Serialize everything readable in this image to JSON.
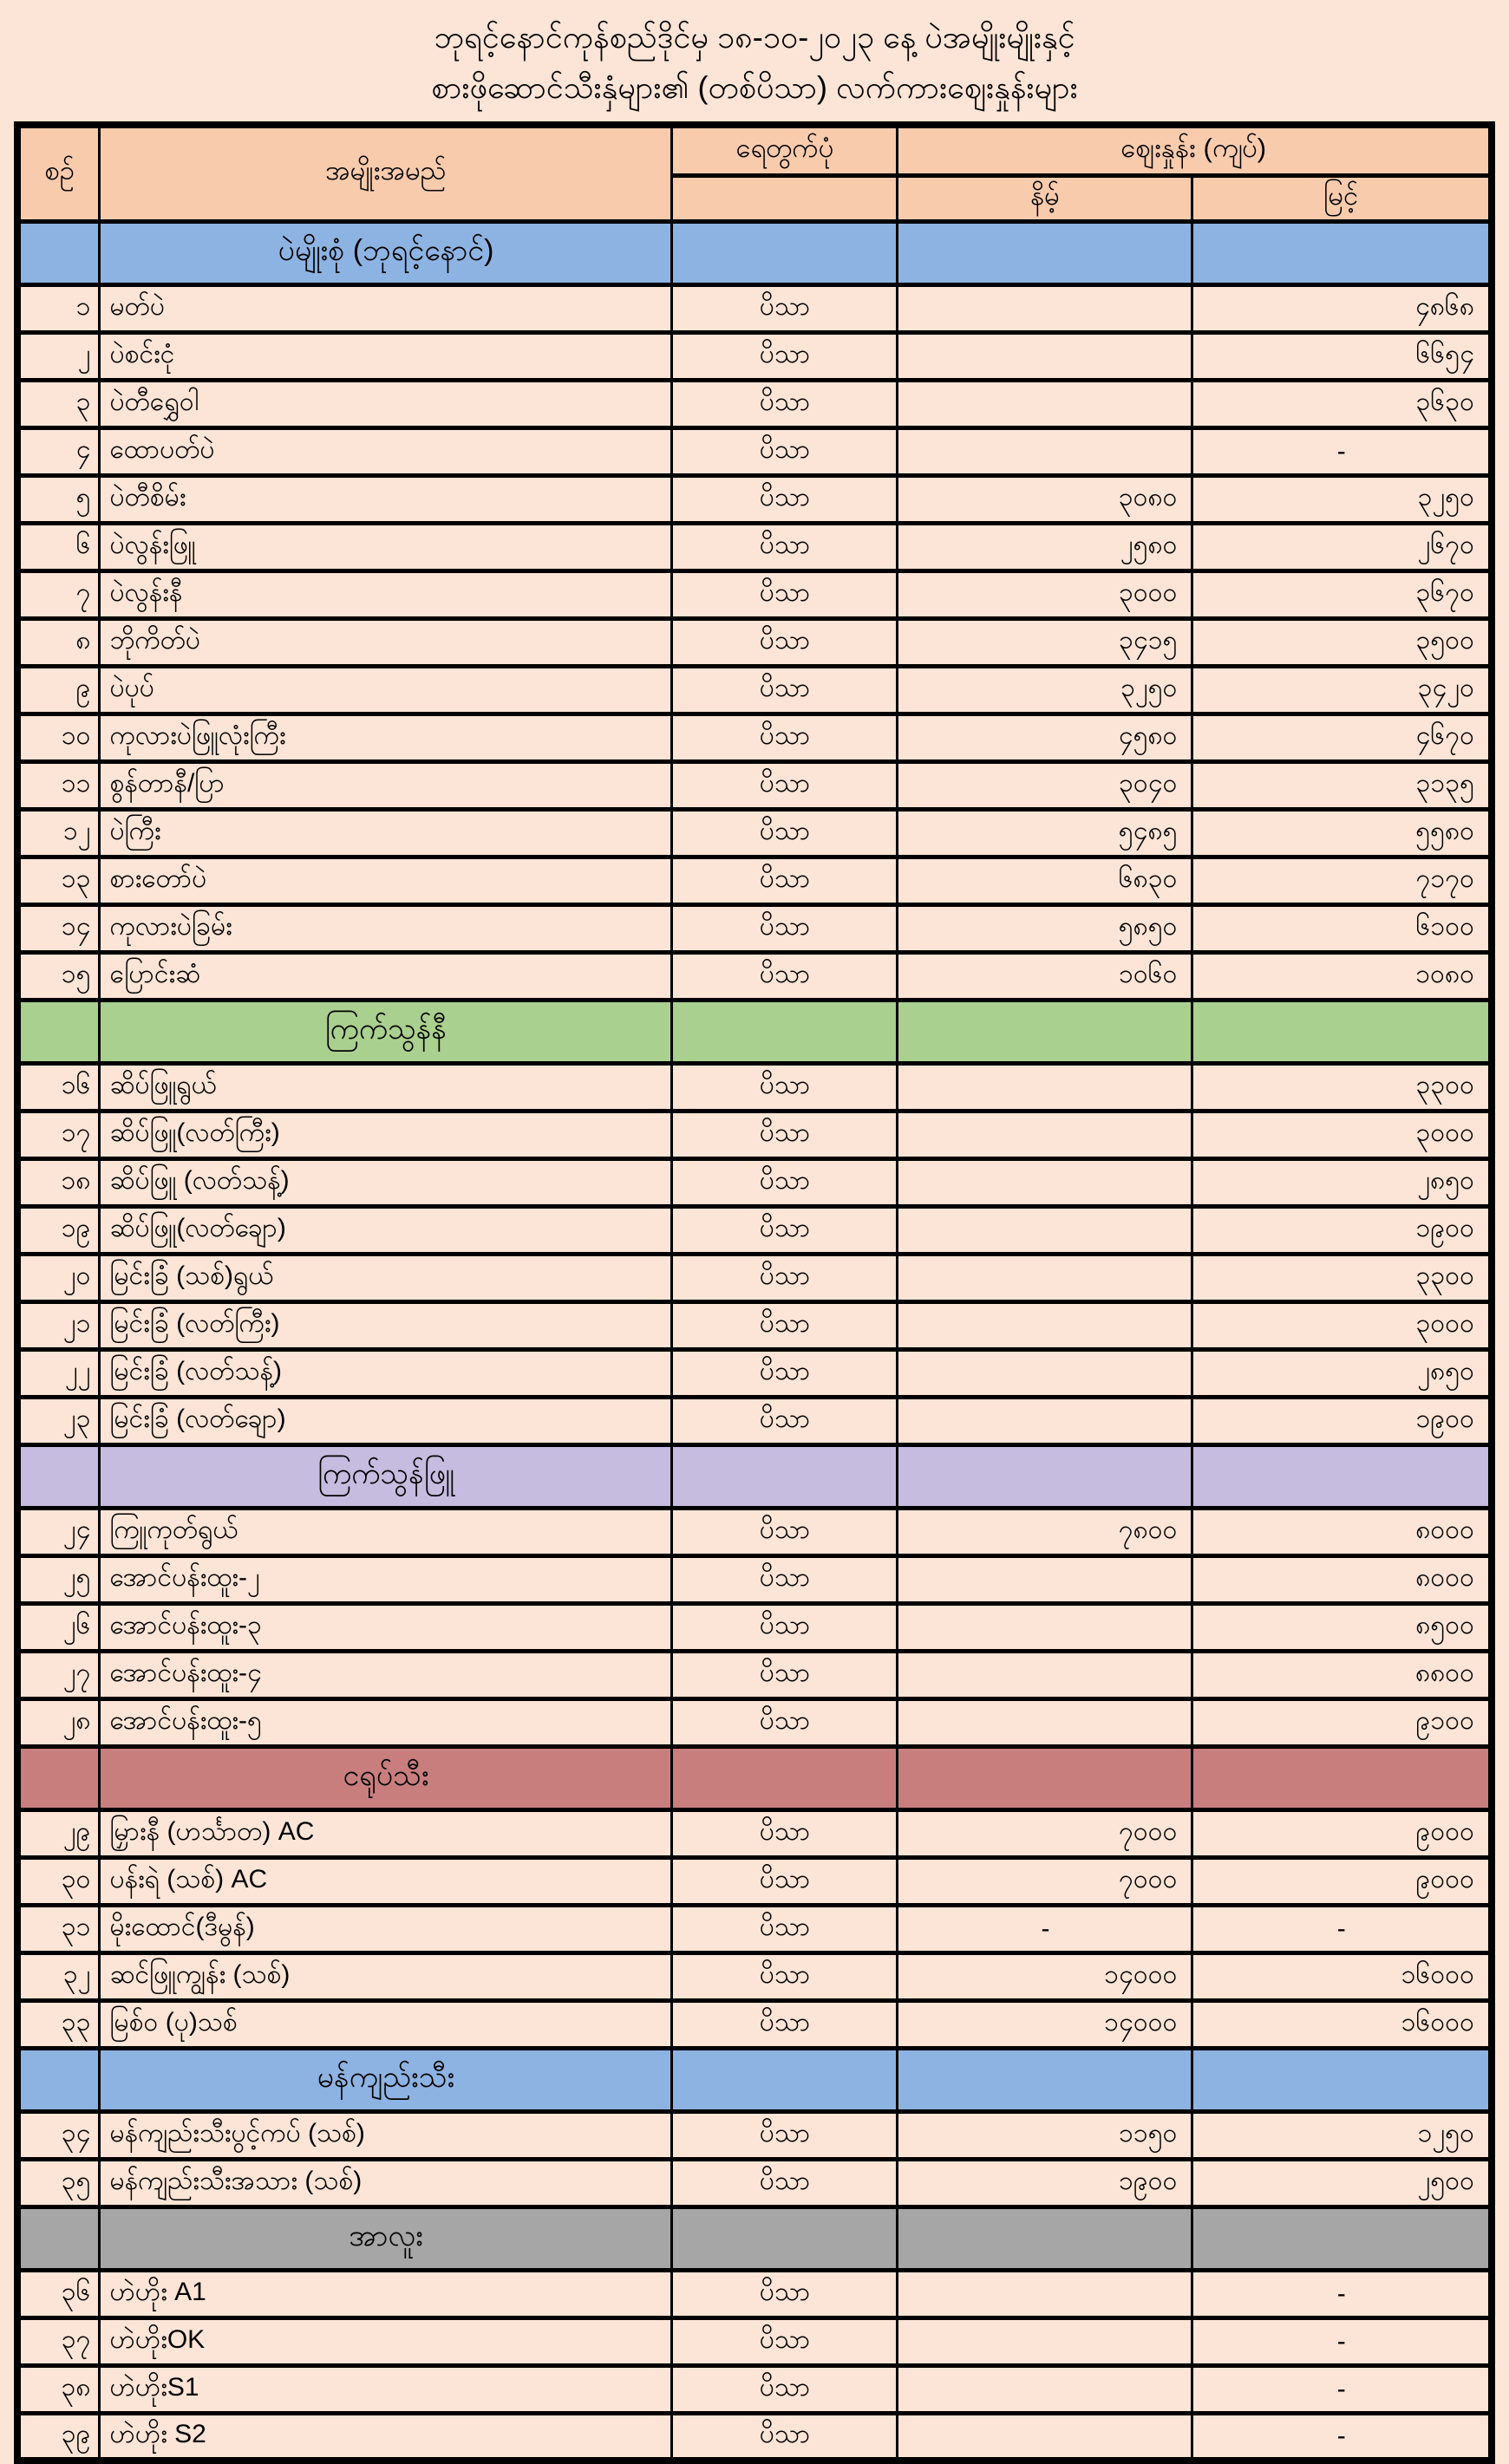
{
  "title": {
    "line1": "ဘုရင့်နောင်ကုန်စည်ဒိုင်မှ ၁၈-၁၀-၂၀၂၃ နေ့ ပဲအမျိုးမျိုးနှင့်",
    "line2": "စားဖိုဆောင်သီးနှံများ၏ (တစ်ပိသာ) လက်ကားဈေးနှုန်းများ"
  },
  "colors": {
    "page_bg": "#fce4d6",
    "row_bg": "#fce4d6",
    "header_bg": "#f8cbad",
    "border": "#000000"
  },
  "table": {
    "headers": {
      "no": "စဉ်",
      "name": "အမျိုးအမည်",
      "unit": "ရေတွက်ပုံ",
      "price_group": "ဈေးနှုန်း (ကျပ်)",
      "low": "နိမ့်",
      "high": "မြင့်"
    },
    "sections": [
      {
        "label": "ပဲမျိုးစုံ (ဘုရင့်နောင်)",
        "color": "#8db3e2",
        "rows": [
          {
            "no": "၁",
            "name": "မတ်ပဲ",
            "unit": "ပိသာ",
            "low": "",
            "high": "၄၈၆၈"
          },
          {
            "no": "၂",
            "name": "ပဲစင်းငုံ",
            "unit": "ပိသာ",
            "low": "",
            "high": "၆၆၅၄"
          },
          {
            "no": "၃",
            "name": "ပဲတီရွှေဝါ",
            "unit": "ပိသာ",
            "low": "",
            "high": "၃၆၃၀"
          },
          {
            "no": "၄",
            "name": "ထောပတ်ပဲ",
            "unit": "ပိသာ",
            "low": "",
            "high": "-"
          },
          {
            "no": "၅",
            "name": "ပဲတီစိမ်း",
            "unit": "ပိသာ",
            "low": "၃၀၈၀",
            "high": "၃၂၅၀"
          },
          {
            "no": "၆",
            "name": "ပဲလွန်းဖြူ",
            "unit": "ပိသာ",
            "low": "၂၅၈၀",
            "high": "၂၆၇၀"
          },
          {
            "no": "၇",
            "name": "ပဲလွန်းနီ",
            "unit": "ပိသာ",
            "low": "၃၀၀၀",
            "high": "၃၆၇၀"
          },
          {
            "no": "၈",
            "name": "ဘိုကိတ်ပဲ",
            "unit": "ပိသာ",
            "low": "၃၄၁၅",
            "high": "၃၅၀၀"
          },
          {
            "no": "၉",
            "name": "ပဲပုပ်",
            "unit": "ပိသာ",
            "low": "၃၂၅၀",
            "high": "၃၄၂၀"
          },
          {
            "no": "၁၀",
            "name": "ကုလားပဲဖြူလုံးကြီး",
            "unit": "ပိသာ",
            "low": "၄၅၈၀",
            "high": "၄၆၇၀"
          },
          {
            "no": "၁၁",
            "name": "စွန်တာနီ/ပြာ",
            "unit": "ပိသာ",
            "low": "၃၀၄၀",
            "high": "၃၁၃၅"
          },
          {
            "no": "၁၂",
            "name": "ပဲကြီး",
            "unit": "ပိသာ",
            "low": "၅၄၈၅",
            "high": "၅၅၈၀"
          },
          {
            "no": "၁၃",
            "name": "စားတော်ပဲ",
            "unit": "ပိသာ",
            "low": "၆၈၃၀",
            "high": "၇၁၇၀"
          },
          {
            "no": "၁၄",
            "name": "ကုလားပဲခြမ်း",
            "unit": "ပိသာ",
            "low": "၅၈၅၀",
            "high": "၆၁၀၀"
          },
          {
            "no": "၁၅",
            "name": "ပြောင်းဆံ",
            "unit": "ပိသာ",
            "low": "၁၀၆၀",
            "high": "၁၀၈၀"
          }
        ]
      },
      {
        "label": "ကြက်သွန်နီ",
        "color": "#a9d08e",
        "rows": [
          {
            "no": "၁၆",
            "name": "ဆိပ်ဖြူရွယ်",
            "unit": "ပိသာ",
            "low": "",
            "high": "၃၃၀၀"
          },
          {
            "no": "၁၇",
            "name": "ဆိပ်ဖြူ(လတ်ကြီး)",
            "unit": "ပိသာ",
            "low": "",
            "high": "၃၀၀၀"
          },
          {
            "no": "၁၈",
            "name": "ဆိပ်ဖြူ (လတ်သန့်)",
            "unit": "ပိသာ",
            "low": "",
            "high": "၂၈၅၀"
          },
          {
            "no": "၁၉",
            "name": "ဆိပ်ဖြူ(လတ်ချော)",
            "unit": "ပိသာ",
            "low": "",
            "high": "၁၉၀၀"
          },
          {
            "no": "၂၀",
            "name": "မြင်းခြံ (သစ်)ရွယ်",
            "unit": "ပိသာ",
            "low": "",
            "high": "၃၃၀၀"
          },
          {
            "no": "၂၁",
            "name": "မြင်းခြံ (လတ်ကြီး)",
            "unit": "ပိသာ",
            "low": "",
            "high": "၃၀၀၀"
          },
          {
            "no": "၂၂",
            "name": "မြင်းခြံ (လတ်သန့်)",
            "unit": "ပိသာ",
            "low": "",
            "high": "၂၈၅၀"
          },
          {
            "no": "၂၃",
            "name": "မြင်းခြံ (လတ်ချော)",
            "unit": "ပိသာ",
            "low": "",
            "high": "၁၉၀၀"
          }
        ]
      },
      {
        "label": "ကြက်သွန်ဖြူ",
        "color": "#c5bce0",
        "rows": [
          {
            "no": "၂၄",
            "name": "ကြူကုတ်ရွယ်",
            "unit": "ပိသာ",
            "low": "၇၈၀၀",
            "high": "၈၀၀၀"
          },
          {
            "no": "၂၅",
            "name": "အောင်ပန်းထူး-၂",
            "unit": "ပိသာ",
            "low": "",
            "high": "၈၀၀၀"
          },
          {
            "no": "၂၆",
            "name": "အောင်ပန်းထူး-၃",
            "unit": "ပိသာ",
            "low": "",
            "high": "၈၅၀၀"
          },
          {
            "no": "၂၇",
            "name": "အောင်ပန်းထူး-၄",
            "unit": "ပိသာ",
            "low": "",
            "high": "၈၈၀၀"
          },
          {
            "no": "၂၈",
            "name": "အောင်ပန်းထူး-၅",
            "unit": "ပိသာ",
            "low": "",
            "high": "၉၁၀၀"
          }
        ]
      },
      {
        "label": "ငရုပ်သီး",
        "color": "#c97e7e",
        "rows": [
          {
            "no": "၂၉",
            "name": "မြှားနီ (ဟင်္သာတ) AC",
            "unit": "ပိသာ",
            "low": "၇၀၀၀",
            "high": "၉၀၀၀"
          },
          {
            "no": "၃၀",
            "name": "ပန်းရဲ (သစ်) AC",
            "unit": "ပိသာ",
            "low": "၇၀၀၀",
            "high": "၉၀၀၀"
          },
          {
            "no": "၃၁",
            "name": "မိုးထောင်(ဒီမွန်)",
            "unit": "ပိသာ",
            "low": "-",
            "high": "-"
          },
          {
            "no": "၃၂",
            "name": "ဆင်ဖြူကျွန်း (သစ်)",
            "unit": "ပိသာ",
            "low": "၁၄၀၀၀",
            "high": "၁၆၀၀၀"
          },
          {
            "no": "၃၃",
            "name": "မြစ်ဝ (ပု)သစ်",
            "unit": "ပိသာ",
            "low": "၁၄၀၀၀",
            "high": "၁၆၀၀၀"
          }
        ]
      },
      {
        "label": "မန်ကျည်းသီး",
        "color": "#8db3e2",
        "rows": [
          {
            "no": "၃၄",
            "name": "မန်ကျည်းသီးပွင့်ကပ် (သစ်)",
            "unit": "ပိသာ",
            "low": "၁၁၅၀",
            "high": "၁၂၅၀"
          },
          {
            "no": "၃၅",
            "name": "မန်ကျည်းသီးအသား (သစ်)",
            "unit": "ပိသာ",
            "low": "၁၉၀၀",
            "high": "၂၅၀၀"
          }
        ]
      },
      {
        "label": "အာလူး",
        "color": "#a6a6a6",
        "rows": [
          {
            "no": "၃၆",
            "name": "ဟဲဟိုး A1",
            "unit": "ပိသာ",
            "low": "",
            "high": "-"
          },
          {
            "no": "၃၇",
            "name": "ဟဲဟိုးOK",
            "unit": "ပိသာ",
            "low": "",
            "high": "-"
          },
          {
            "no": "၃၈",
            "name": "ဟဲဟိုးS1",
            "unit": "ပိသာ",
            "low": "",
            "high": "-"
          },
          {
            "no": "၃၉",
            "name": "ဟဲဟိုး S2",
            "unit": "ပိသာ",
            "low": "",
            "high": "-"
          }
        ]
      }
    ]
  }
}
